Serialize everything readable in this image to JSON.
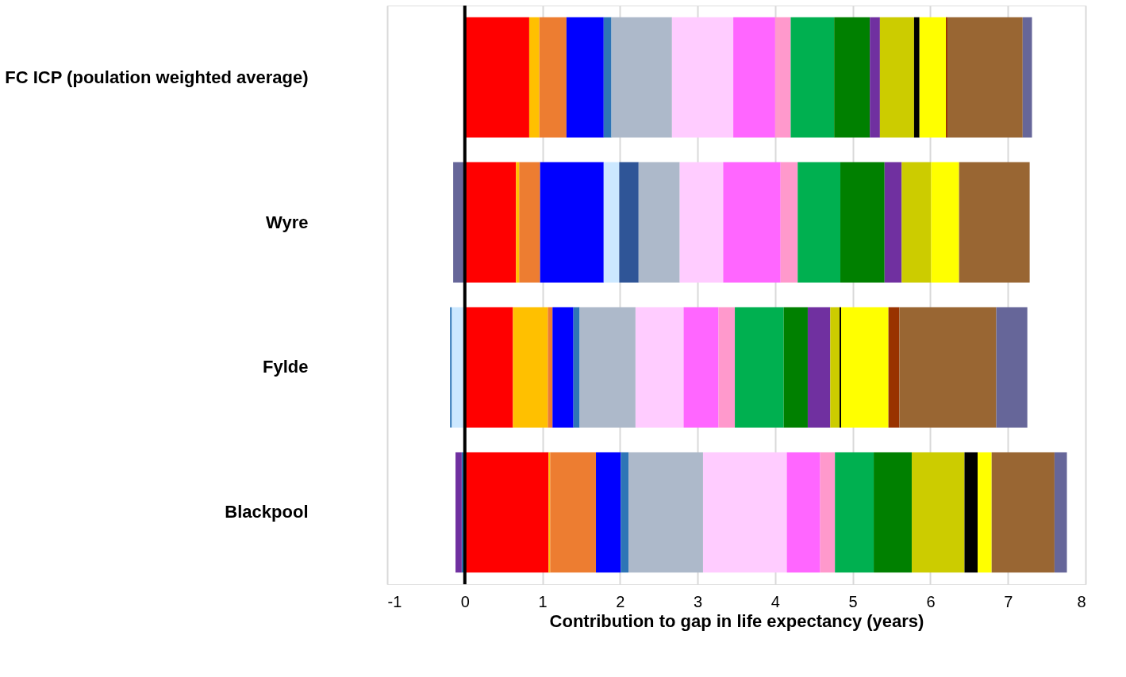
{
  "chart_data": {
    "type": "bar",
    "orientation": "horizontal",
    "stacked": true,
    "xlabel": "Contribution to gap in life expectancy (years)",
    "categories": [
      "FC ICP (poulation weighted average)",
      "Wyre",
      "Fylde",
      "Blackpool"
    ],
    "series": [
      {
        "color": "#ff0000",
        "values": [
          0.83,
          0.66,
          0.62,
          1.08
        ]
      },
      {
        "color": "#ffc000",
        "values": [
          0.13,
          0.04,
          0.45,
          0.02
        ]
      },
      {
        "color": "#ed7d31",
        "values": [
          0.35,
          0.27,
          0.06,
          0.59
        ]
      },
      {
        "color": "#0000ff",
        "values": [
          0.48,
          0.82,
          0.27,
          0.32
        ]
      },
      {
        "color": "#cce8ff",
        "values": [
          null,
          0.2,
          -0.17,
          null
        ]
      },
      {
        "color": "#2e75b6",
        "values": [
          0.1,
          null,
          0.08,
          0.1
        ]
      },
      {
        "color": "#2e75b6",
        "values": [
          null,
          null,
          -0.02,
          -0.04
        ]
      },
      {
        "color": "#2f5597",
        "values": [
          null,
          0.25,
          null,
          null
        ]
      },
      {
        "color": "#adb9ca",
        "values": [
          0.78,
          0.53,
          0.72,
          0.96
        ]
      },
      {
        "color": "#ffccff",
        "values": [
          0.79,
          0.56,
          0.62,
          1.08
        ]
      },
      {
        "color": "#ff66ff",
        "values": [
          0.54,
          0.74,
          0.45,
          0.43
        ]
      },
      {
        "color": "#ff99cc",
        "values": [
          0.2,
          0.22,
          0.21,
          0.19
        ]
      },
      {
        "color": "#00b050",
        "values": [
          0.56,
          0.55,
          0.63,
          0.5
        ]
      },
      {
        "color": "#008000",
        "values": [
          0.46,
          0.57,
          0.31,
          0.49
        ]
      },
      {
        "color": "#7030a0",
        "values": [
          0.13,
          0.22,
          0.29,
          -0.08
        ]
      },
      {
        "color": "#cccc00",
        "values": [
          0.44,
          0.38,
          0.12,
          0.68
        ]
      },
      {
        "color": "#000000",
        "values": [
          0.07,
          null,
          0.02,
          0.17
        ]
      },
      {
        "color": "#ffff00",
        "values": [
          0.34,
          0.36,
          0.61,
          0.18
        ]
      },
      {
        "color": "#993300",
        "values": [
          0.02,
          null,
          0.14,
          null
        ]
      },
      {
        "color": "#996633",
        "values": [
          0.97,
          0.91,
          1.25,
          0.81
        ]
      },
      {
        "color": "#666699",
        "values": [
          0.12,
          -0.15,
          0.4,
          0.16
        ]
      }
    ],
    "xlim": [
      -1,
      8
    ],
    "xticks": [
      -1,
      0,
      1,
      2,
      3,
      4,
      5,
      6,
      7,
      8
    ],
    "grid": "x",
    "legend": false,
    "ref_lines": [
      {
        "axis": "x",
        "value": 0,
        "color": "#000000"
      }
    ]
  }
}
